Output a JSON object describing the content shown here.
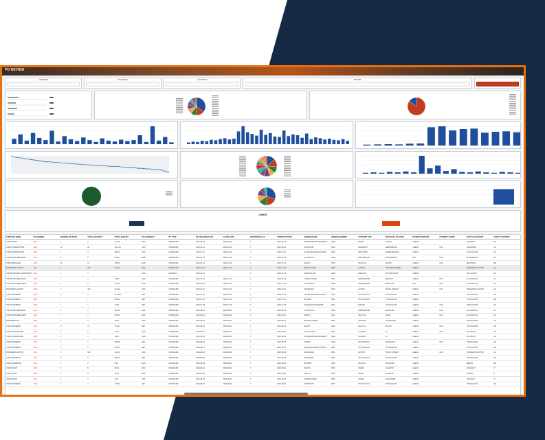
{
  "window": {
    "title": "PO REVIEW"
  },
  "filters": [
    {
      "label": "VENDOR"
    },
    {
      "label": "PO NAME"
    },
    {
      "label": "LOCATION"
    },
    {
      "label": "BUYER"
    }
  ],
  "colors": {
    "frame": "#e8700f",
    "background_navy": "#162a43",
    "bar_blue": "#1f4e9c",
    "accent_red": "#c23b1e",
    "green": "#1a5c2e"
  },
  "links": {
    "title": "LINKS",
    "left_button": "",
    "right_button": ""
  },
  "table": {
    "columns": [
      "SUPPLIER NAME",
      "PO NUMBER",
      "NUMBER OF ITEMS",
      "TOTAL QUANTITY",
      "TOTAL AMOUNT",
      "PO CURRENCY",
      "PO TYPE",
      "PO CREATION DATE",
      "CLOSE DATE",
      "APPROVED FLAG",
      "APPROVED DATE",
      "VENDOR NAME",
      "VENDOR NUMBER",
      "SUPPLIER SITE",
      "SUPPLIER LOCATION",
      "PAYMENT METHOD",
      "PAYMENT TERMS",
      "SHIP TO LOCATION",
      "SHIP TO COUNTRY"
    ],
    "rows": [
      [
        "VISION FRAT",
        "1021",
        "1",
        "1",
        "211.10",
        "USD",
        "STANDARD",
        "2016-09-12",
        "2016-09-12",
        "Y",
        "2016-09-12",
        "PROGRESSIVE PROPERTY",
        "3330",
        "RIVER",
        "LARGO",
        "CHECK",
        "",
        "PALAKE IT",
        "US"
      ],
      [
        "VISION OPERATIONS",
        "1022",
        "20",
        "20",
        "1211.00",
        "USD",
        "STANDARD",
        "2016-03-10",
        "2016-03-10",
        "Y",
        "2016-03-10",
        "ROADSOFT",
        "3331",
        "ROADSOFT",
        "HARRISBURG",
        "CHECK",
        "N30",
        "RIVERSIDE",
        "US"
      ],
      [
        "VISION OPERATIONS",
        "1023",
        "4",
        "4",
        "480.00",
        "USD",
        "STANDARD",
        "2016-07-11",
        "2016-07-11",
        "Y",
        "2016-07-11",
        "ALLIED MANUFACTURING",
        "3332",
        "NEWYORK",
        "INTERNATIONAL",
        "CHECK",
        "",
        "STOCKHOLM",
        "US"
      ],
      [
        "VISION NETHERLANDS",
        "1024",
        "6",
        "6",
        "60.00",
        "EUR",
        "STANDARD",
        "2016-07-21",
        "2016-07-21",
        "Y",
        "2016-07-21",
        "GS CAPITAL",
        "3333",
        "AMSTERDAM",
        "AMSTERDAM",
        "EFT",
        "N30",
        "EL VISION NL",
        "NL"
      ],
      [
        "VISION BELGIUM",
        "1025",
        "11",
        "11",
        "155.00",
        "EUR",
        "STANDARD",
        "2016-07-12",
        "2016-07-12",
        "Y",
        "2016-07-12",
        "SEATTL",
        "3334",
        "SEATTLE",
        "NOVINI",
        "CHECK",
        "N30",
        "BRUSSELS",
        "BE"
      ],
      [
        "PROGRESS AUSTIN",
        "1026",
        "4",
        "207",
        "267.10",
        "USD",
        "STANDARD",
        "2016-10-10",
        "2016-10-10",
        "Y",
        "2016-10-10",
        "NEXT CHOICE",
        "3335",
        "AUSTIN",
        "1500 PEACHTREE",
        "CHECK",
        "",
        "PROGRESS AUSTIN",
        "US"
      ],
      [
        "VISION PROJECT MANUFACTURING",
        "1027",
        "1",
        "1",
        "",
        "USD",
        "BLANKET",
        "2016-11-10",
        "",
        "Y",
        "2016-11-10",
        "PANUSTA INC",
        "3336",
        "PANUSTA",
        "500 DOG DART",
        "CHECK",
        "",
        "ENT VISION",
        "US"
      ],
      [
        "VISION NETHERLANDS",
        "1028",
        "1",
        "1",
        "1.000",
        "EUR",
        "STANDARD",
        "2016-12-14",
        "2016-12-14",
        "Y",
        "2016-12-14",
        "CORRUGATED",
        "3337",
        "AMSTERDAM",
        "DEPOSIT",
        "CHECK",
        "N30",
        "EL VISION NL",
        "NL"
      ],
      [
        "VISION NETHERLANDS",
        "1029",
        "6",
        "6",
        "373.77",
        "EUR",
        "STANDARD",
        "2016-12-14",
        "2016-12-14",
        "Y",
        "2016-12-14",
        "GS CAPITAL",
        "3338",
        "AMSTERDAM",
        "BUGGLES",
        "EFT",
        "N30",
        "EL VISION NL",
        "NL"
      ],
      [
        "PROGRESS AUSTIN",
        "1030",
        "2",
        "100",
        "212.00",
        "USD",
        "STANDARD",
        "2016-07-21",
        "2016-07-21",
        "Y",
        "2016-07-21",
        "ADVANCED",
        "3339",
        "AUSTIN",
        "TEXAS STREET",
        "CHECK",
        "N30",
        "PROGRESS AUSTIN",
        "US"
      ],
      [
        "VISION SWEDEN",
        "1031",
        "3",
        "3",
        "313.275",
        "SEK",
        "STANDARD",
        "2016-07-21",
        "2016-07-21",
        "Y",
        "2016-07-21",
        "ALLIED MANUFACTURING",
        "3340",
        "STOCKHOLM",
        "STOCKHOLM",
        "CHECK",
        "",
        "STOCKHOLM",
        "SE"
      ],
      [
        "VISION SWEDEN",
        "1032",
        "7",
        "7",
        "984.00",
        "SEK",
        "STANDARD",
        "2016-07-21",
        "2016-07-21",
        "Y",
        "2016-07-21",
        "BAYERN",
        "3341",
        "STOCKHOLM",
        "STOCKHOLM",
        "CHECK",
        "",
        "STOCKHOLM",
        "SE"
      ],
      [
        "VISION SWEDEN",
        "1033",
        "1",
        "1",
        "79.60",
        "SEK",
        "STANDARD",
        "2016-07-18",
        "2016-07-18",
        "Y",
        "2016-07-18",
        "ADVANCED NETWORK",
        "3342",
        "MALMO",
        "STOCKHOLM",
        "CHECK",
        "N30",
        "STOCKHOLM",
        "SE"
      ],
      [
        "VISION NETHERLANDS",
        "1034",
        "7",
        "7",
        "335.00",
        "EUR",
        "STANDARD",
        "2016-08-10",
        "2016-08-10",
        "Y",
        "2016-08-10",
        "GS CAPITAL",
        "3343",
        "AMSTERDAM",
        "BUGGLES",
        "CHECK",
        "N30",
        "EL VISION NL",
        "NL"
      ],
      [
        "VISION NETHERLANDS",
        "1035",
        "7",
        "7",
        "265.00",
        "EUR",
        "STANDARD",
        "2016-08-11",
        "2016-08-11",
        "Y",
        "2016-08-11",
        "SEATTL",
        "3344",
        "SEATTLE",
        "NAMS",
        "CHECK",
        "N30",
        "EL VISION NL",
        "NL"
      ],
      [
        "PROGRESS US",
        "1036",
        "2",
        "2",
        "24.00",
        "USD",
        "STANDARD",
        "2016-08-12",
        "2016-08-12",
        "Y",
        "2016-08-12",
        "BROWN SUPPLY",
        "3345",
        "ATLANTA",
        "CLEVELAND",
        "CHECK",
        "",
        "STOCKHOLM",
        "US"
      ],
      [
        "VISION SWEDEN",
        "1037",
        "17",
        "17",
        "731.37",
        "SEK",
        "STANDARD",
        "2016-08-13",
        "2016-08-13",
        "Y",
        "2016-08-13",
        "SEATTL",
        "3346",
        "SEATTLE",
        "NOVINI",
        "CHECK",
        "N30",
        "STOCKHOLM",
        "SE"
      ],
      [
        "VISION SINGAPORE",
        "1038",
        "5",
        "5",
        "72.00",
        "SGD",
        "STANDARD",
        "2016-08-14",
        "2016-08-14",
        "Y",
        "2016-08-14",
        "GS PLASTICS",
        "3347",
        "LONDON",
        "LC",
        "CHECK",
        "N30",
        "FR VISION",
        "SG"
      ],
      [
        "VISION SINGAPORE",
        "1039",
        "1",
        "1",
        "1200",
        "SGD",
        "STANDARD",
        "2016-08-15",
        "2016-08-15",
        "Y",
        "2016-08-15",
        "PROGRESSIVE PROPERTY",
        "3348",
        "LONDON",
        "LC",
        "CHECK",
        "",
        "FR VISION",
        "SG"
      ],
      [
        "VISION SWEDEN",
        "1040",
        "1",
        "1",
        "265.00",
        "SEK",
        "STANDARD",
        "2016-08-16",
        "2016-08-16",
        "Y",
        "2016-08-16",
        "FINNEX",
        "3349",
        "STOCKHOLM",
        "SUNDSVALL",
        "CHECK",
        "N30",
        "STOCKHOLM",
        "SE"
      ],
      [
        "VISION SWEDEN",
        "1041",
        "5",
        "5",
        "961.00",
        "SEK",
        "STANDARD",
        "2016-08-17",
        "2016-08-17",
        "Y",
        "2016-08-17",
        "ALLIED MANUFACTURING",
        "3350",
        "STOCKHOLM",
        "STOCKHOLM",
        "CHECK",
        "",
        "STOCKHOLM",
        "SE"
      ],
      [
        "PROGRESS AUSTIN",
        "1042",
        "2",
        "100",
        "212.00",
        "USD",
        "STANDARD",
        "2016-08-18",
        "2016-08-18",
        "Y",
        "2016-08-18",
        "ADVANCED",
        "3351",
        "AUSTIN",
        "TEXAS STREET",
        "CHECK",
        "N30",
        "PROGRESS AUSTIN",
        "US"
      ],
      [
        "VISION SWEDEN",
        "1043",
        "5",
        "5",
        "960.00",
        "SEK",
        "STANDARD",
        "2016-08-19",
        "2016-08-19",
        "Y",
        "2016-08-19",
        "ADVANCED",
        "3352",
        "STOCKHOLM",
        "STOCKHOLM",
        "CHECK",
        "",
        "STOCKHOLM",
        "SE"
      ],
      [
        "VISION GERMANY",
        "1044",
        "1",
        "1",
        "5.00",
        "EUR",
        "STANDARD",
        "2016-08-20",
        "2016-08-20",
        "Y",
        "2016-08-20",
        "BAYERN",
        "3353",
        "MUNICH",
        "MUNCHEN",
        "CHECK",
        "",
        "BERLIN",
        "DE"
      ],
      [
        "VISION FRAT",
        "1045",
        "5",
        "5",
        "86.00",
        "USD",
        "STANDARD",
        "2016-08-21",
        "2016-08-21",
        "Y",
        "2016-08-21",
        "SEATTL",
        "3354",
        "RIVER",
        "LAGARTO",
        "CHECK",
        "",
        "PALAKE IT",
        "IT"
      ],
      [
        "VISION ITALY",
        "1046",
        "1",
        "1",
        "64.75",
        "EUR",
        "STANDARD",
        "2016-08-22",
        "2016-08-22",
        "Y",
        "2016-08-22",
        "SEATTL",
        "3355",
        "ROMA",
        "LAGARTO",
        "CHECK",
        "",
        "ROMA IT",
        "IT"
      ],
      [
        "VISION FRAT",
        "1047",
        "1",
        "1",
        "4.00",
        "USD",
        "STANDARD",
        "2016-08-23",
        "2016-08-23",
        "Y",
        "2016-08-23",
        "CORRUGATED",
        "3356",
        "RIVER",
        "HAGARNER",
        "CHECK",
        "",
        "PALAKE IT",
        "IT"
      ],
      [
        "VISION SWEDEN",
        "1048",
        "2",
        "2",
        "173.87",
        "SEK",
        "STANDARD",
        "2016-08-24",
        "2016-08-24",
        "Y",
        "2016-08-24",
        "ROADSOFT",
        "3357",
        "STOCKHOLM",
        "STOCKHOLM",
        "CHECK",
        "",
        "STOCKHOLM",
        "SE"
      ]
    ]
  },
  "charts": {
    "bar1": [
      12,
      22,
      8,
      25,
      14,
      9,
      30,
      6,
      18,
      11,
      7,
      15,
      9,
      5,
      13,
      8,
      6,
      10,
      7,
      9,
      20,
      5,
      40,
      8,
      16,
      4
    ],
    "bar2": [
      4,
      6,
      5,
      8,
      7,
      10,
      9,
      12,
      14,
      11,
      13,
      30,
      42,
      28,
      24,
      20,
      34,
      22,
      26,
      18,
      17,
      32,
      19,
      23,
      21,
      15,
      25,
      12,
      16,
      14,
      11,
      13,
      10,
      9,
      12,
      8
    ],
    "bar3": [
      4,
      5,
      6,
      5,
      8,
      9,
      80,
      84,
      66,
      72,
      74,
      56,
      60,
      62,
      58
    ],
    "bar4": [
      2,
      3,
      2,
      4,
      3,
      5,
      3,
      40,
      12,
      18,
      6,
      10,
      4,
      3,
      5,
      3,
      2,
      4,
      3,
      2
    ],
    "bar5": [
      80
    ],
    "line1": [
      30,
      28,
      27,
      26,
      25,
      24,
      23,
      22,
      21,
      20,
      20,
      19,
      19,
      18,
      18,
      17,
      17,
      16,
      16,
      15,
      15,
      14,
      14,
      14,
      13,
      13,
      12,
      12,
      12,
      11,
      11,
      10,
      10,
      9,
      9,
      8,
      8,
      7,
      7,
      6,
      4,
      2
    ],
    "pie1": [
      35,
      15,
      10,
      10,
      8,
      7,
      6,
      5,
      4
    ],
    "pie_red": [
      85,
      15
    ],
    "pie_big": [
      14,
      12,
      10,
      9,
      9,
      8,
      8,
      7,
      7,
      6,
      5,
      5
    ],
    "pie_mid": [
      30,
      20,
      15,
      12,
      10,
      8,
      5
    ],
    "pie_colors": [
      "#1f4e9c",
      "#c23b1e",
      "#2e7d32",
      "#f2a93b",
      "#6b3fa0",
      "#8c564b",
      "#17becf",
      "#d62728",
      "#7f7f7f",
      "#bcbd22",
      "#e377c2",
      "#ff7f0e"
    ]
  },
  "stats": {
    "rows": [
      "",
      "",
      "",
      "",
      ""
    ]
  }
}
